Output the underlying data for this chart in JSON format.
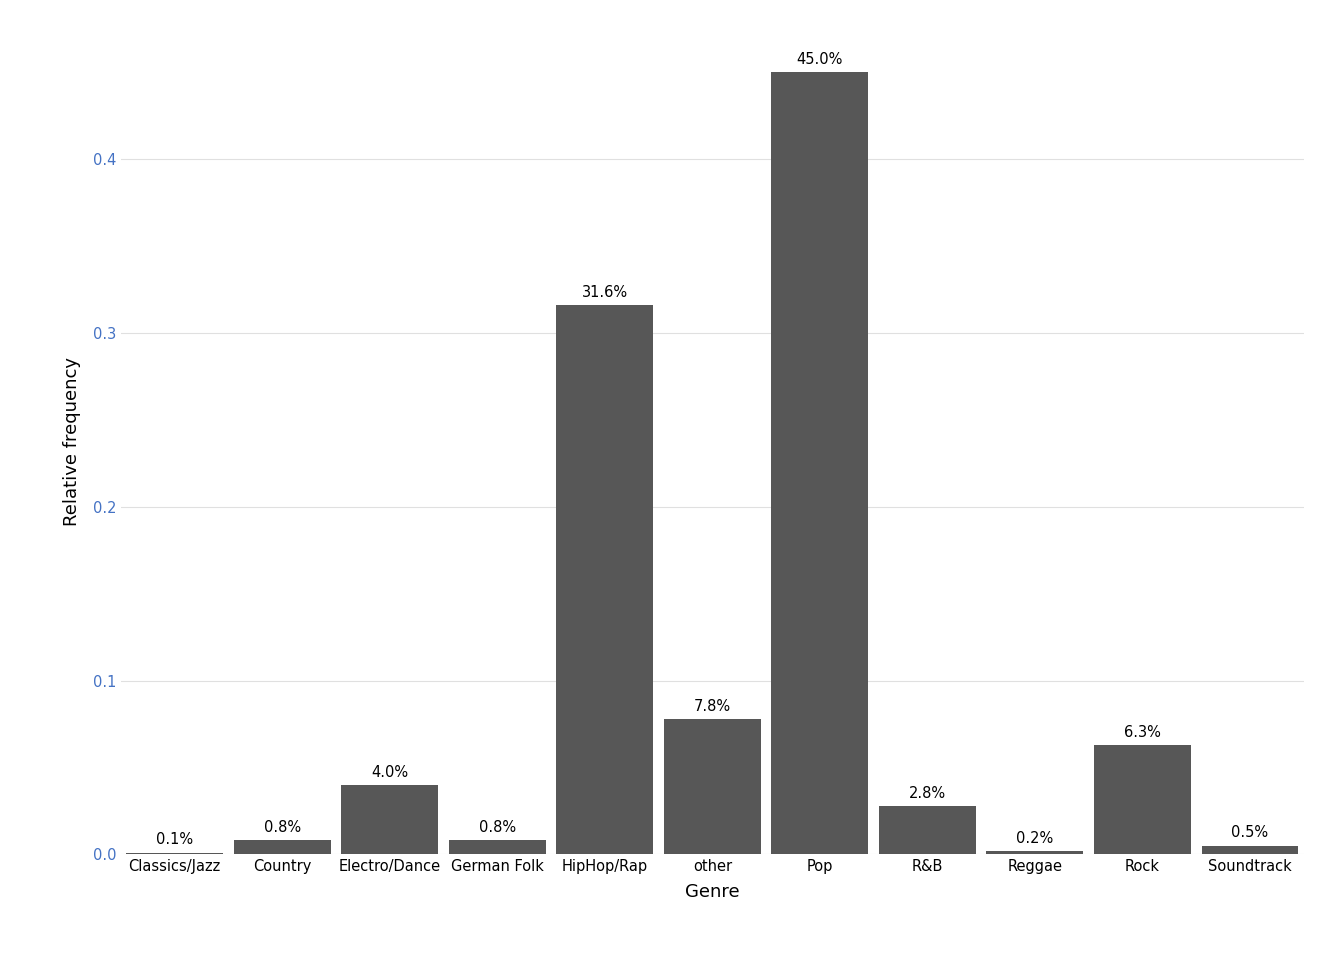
{
  "categories": [
    "Classics/Jazz",
    "Country",
    "Electro/Dance",
    "German Folk",
    "HipHop/Rap",
    "other",
    "Pop",
    "R&B",
    "Reggae",
    "Rock",
    "Soundtrack"
  ],
  "values": [
    0.001,
    0.008,
    0.04,
    0.008,
    0.316,
    0.078,
    0.45,
    0.028,
    0.002,
    0.063,
    0.005
  ],
  "labels": [
    "0.1%",
    "0.8%",
    "4.0%",
    "0.8%",
    "31.6%",
    "7.8%",
    "45.0%",
    "2.8%",
    "0.2%",
    "6.3%",
    "0.5%"
  ],
  "bar_color": "#575757",
  "background_color": "#ffffff",
  "grid_color": "#e0e0e0",
  "ylabel": "Relative frequency",
  "xlabel": "Genre",
  "ylim": [
    0,
    0.475
  ],
  "yticks": [
    0.0,
    0.1,
    0.2,
    0.3,
    0.4
  ],
  "tick_color": "#4472c4",
  "label_fontsize": 10.5,
  "axis_label_fontsize": 13,
  "tick_label_fontsize": 10.5
}
